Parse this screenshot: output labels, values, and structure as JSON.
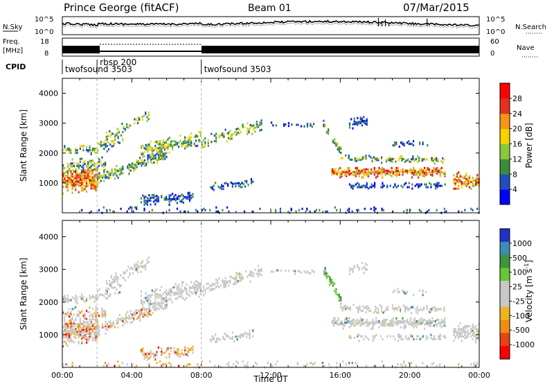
{
  "header": {
    "station": "Prince George (fitACF)",
    "beam": "Beam 01",
    "date": "07/Mar/2015"
  },
  "strip_labels": {
    "nsky": "N.Sky",
    "nsearch": "N.Search",
    "freq_line1": "Freq.",
    "freq_line2": "[MHz]",
    "nave": "Nave",
    "cpid": "CPID",
    "nsky_ticks": [
      "10^5",
      "10^0"
    ],
    "nsearch_ticks": [
      "10^5",
      "10^0"
    ],
    "freq_ticks": [
      "18",
      "8"
    ],
    "nave_ticks": [
      "60",
      "0"
    ]
  },
  "cpid": [
    {
      "label": "twofsound 3503",
      "start_hour": 0
    },
    {
      "label": "rbsp 200",
      "start_hour": 2
    },
    {
      "label": "twofsound 3503",
      "start_hour": 8
    }
  ],
  "chart_data": [
    {
      "type": "heatmap",
      "name": "power-panel",
      "xlabel": "",
      "ylabel": "Slant Range [km]",
      "xlim": [
        0,
        24
      ],
      "ylim": [
        0,
        4500
      ],
      "y_ticks": [
        "1000",
        "2000",
        "3000",
        "4000"
      ],
      "colorbar": {
        "label": "Power [dB]",
        "ticks": [
          "4",
          "8",
          "12",
          "16",
          "20",
          "24",
          "28"
        ],
        "colors": [
          "#0000ff",
          "#1f4fbf",
          "#3c8c3c",
          "#8cc83c",
          "#f5d200",
          "#f59614",
          "#e1321e",
          "#ff0000"
        ]
      }
    },
    {
      "type": "heatmap",
      "name": "velocity-panel",
      "xlabel": "Time UT",
      "ylabel": "Slant Range [km]",
      "xlim": [
        0,
        24
      ],
      "ylim": [
        0,
        4500
      ],
      "x_ticks": [
        "00:00",
        "04:00",
        "08:00",
        "12:00",
        "16:00",
        "20:00",
        "00:00"
      ],
      "y_ticks": [
        "1000",
        "2000",
        "3000",
        "4000"
      ],
      "colorbar": {
        "label_prefix": "Velocity  [m s",
        "label_sup": "-1",
        "label_suffix": "]",
        "ticks": [
          "1000",
          "500",
          "100",
          "25",
          "-25",
          "-100",
          "-500",
          "-1000"
        ],
        "colors": [
          "#1e32c8",
          "#3c8cb4",
          "#3c963c",
          "#64c832",
          "#c8c8c8",
          "#c8c8c8",
          "#f0b41e",
          "#f08c14",
          "#e14614",
          "#ff0000"
        ]
      }
    }
  ]
}
